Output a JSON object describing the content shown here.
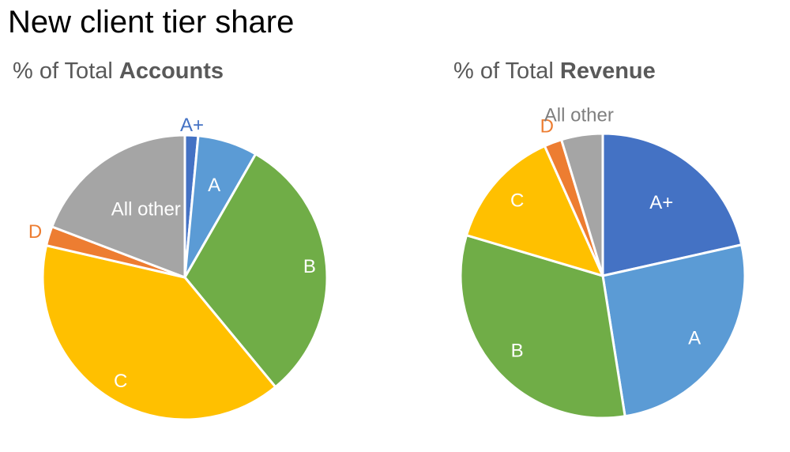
{
  "title": "New client tier share",
  "charts_subtitles": [
    {
      "prefix": "% of Total ",
      "bold": "Accounts"
    },
    {
      "prefix": "% of Total ",
      "bold": "Revenue"
    }
  ],
  "colors": {
    "A+": "#4472C4",
    "A": "#5B9BD5",
    "B": "#70AD47",
    "C": "#FFC000",
    "D": "#ED7D31",
    "All other": "#A5A5A5"
  },
  "chart_data": [
    {
      "type": "pie",
      "title": "% of Total Accounts",
      "categories": [
        "A+",
        "A",
        "B",
        "C",
        "D",
        "All other"
      ],
      "values": [
        1.5,
        6.8,
        30.7,
        39.6,
        2.2,
        19.2
      ],
      "label_colors": [
        "#4472C4",
        "#ffffff",
        "#ffffff",
        "#ffffff",
        "#ED7D31",
        "#ffffff"
      ],
      "start": "12 o'clock, clockwise"
    },
    {
      "type": "pie",
      "title": "% of Total Revenue",
      "categories": [
        "A+",
        "A",
        "B",
        "C",
        "D",
        "All other"
      ],
      "values": [
        21.5,
        26.0,
        32.1,
        13.7,
        2.0,
        4.7
      ],
      "label_colors": [
        "#ffffff",
        "#ffffff",
        "#ffffff",
        "#ffffff",
        "#ED7D31",
        "#7F7F7F"
      ],
      "start": "12 o'clock, clockwise"
    }
  ]
}
